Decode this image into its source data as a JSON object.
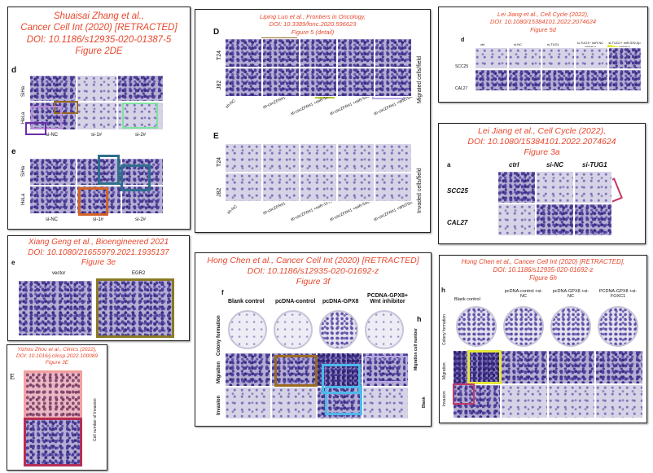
{
  "panels": {
    "zhang": {
      "l1": "Shuaisai Zhang et al.,",
      "l2": "Cancer Cell Int (2020) [RETRACTED]",
      "l3": "DOI: 10.1186/s12935-020-01387-5",
      "l4": "Figure 2DE",
      "letter_d": "d",
      "letter_e": "e",
      "rows": [
        "SiHa",
        "HeLa"
      ],
      "cols_d": [
        "si-NC",
        "si-1#",
        "si-2#"
      ],
      "cols_e": [
        "si-NC",
        "si-1#",
        "si-2#"
      ]
    },
    "luo": {
      "l1": "Liping Luo et al., Frontiers in Oncology,",
      "l2": "DOI: 10.3389/fonc.2020.596623",
      "l3": "Figure 5 (detail)",
      "letter_d": "D",
      "letter_e": "E",
      "rows": [
        "T24",
        "J82"
      ],
      "cols": [
        "sh-NC",
        "sh-circZFR#1",
        "sh-circZFR#1 +miR-1270 inhibitor",
        "sh-circZFR#1 +miR-545 inhibitor",
        "sh-circZFR#1 +WNT5A"
      ],
      "side_d": "Migrated cells/field",
      "side_e": "Invaded cells/field"
    },
    "jiang5d": {
      "l1": "Lei Jiang et al., Cell Cycle (2022),",
      "l2": "DOI: 10.1080/15384101.2022.2074624",
      "l3": "Figure 5d",
      "letter": "d",
      "rows": [
        "SCC25",
        "CAL27"
      ],
      "cols": [
        "ctrl",
        "si-NC",
        "si-TUG1",
        "si-TUG1+ miR-NC inhibitor",
        "si-TUG1+ miR-592-5p inhibitor"
      ]
    },
    "jiang3a": {
      "l1": "Lei Jiang et al., Cell Cycle (2022),",
      "l2": "DOI: 10.1080/15384101.2022.2074624",
      "l3": "Figure 3a",
      "letter": "a",
      "rows": [
        "SCC25",
        "CAL27"
      ],
      "cols": [
        "ctrl",
        "si-NC",
        "si-TUG1"
      ]
    },
    "geng": {
      "l1": "Xiang Geng et al., Bioengineered 2021",
      "l2": "DOI: 10.1080/21655979.2021.1935137",
      "l3": "Figure 3e",
      "letter": "e",
      "cols": [
        "vector",
        "EGR2"
      ]
    },
    "chen3f": {
      "l1": "Hong Chen et al., Cancer Cell Int (2020) [RETRACTED]",
      "l2": "DOI: 10.1186/s12935-020-01692-z",
      "l3": "Figure 3f",
      "letter": "f",
      "letter_h": "h",
      "cols": [
        "Blank control",
        "pcDNA-control",
        "pcDNA-GPX8",
        "PCDNA-GPX8+ Wnt inhibitor"
      ],
      "rows": [
        "Colony formation",
        "Migration",
        "Invasion"
      ],
      "side1": "Migration cell number",
      "side2": "Blank"
    },
    "zhou": {
      "l1": "Yizhou Zhou et al., Clinics (2022),",
      "l2": "DOI: 10.1016/j.clinsp.2022.100089",
      "l3": "Figure 3E",
      "letter": "E",
      "side": "Cell number of Invasion"
    },
    "chen6h": {
      "l1": "Hong Chen et al., Cancer Cell Int (2020) [RETRACTED],",
      "l2": "DOI: 10.1186/s12935-020-01692-z",
      "l3": "Figure 6h",
      "letter": "h",
      "cols": [
        "Blank control",
        "pcDNA-control +si-NC",
        "pcDNA-GPX8 +si-NC",
        "PCDNA-GPX8 +si-FOXC1"
      ],
      "rows": [
        "Colony formation",
        "Migration",
        "Invasion"
      ]
    }
  },
  "colors": {
    "title": "#e8482d",
    "brown": "#9a6a23",
    "purple": "#9b4cc9",
    "green": "#7fe3a0",
    "blue": "#2f6f8e",
    "orange": "#d2642a",
    "pink": "#f0a8bf",
    "yellow": "#e6e83a",
    "lime": "#b6c23a",
    "lavender": "#b9a8e6",
    "olive": "#8a7a24",
    "cyan": "#4fb9ea",
    "crimson": "#b52e56",
    "salmon": "#f2a0a0"
  }
}
